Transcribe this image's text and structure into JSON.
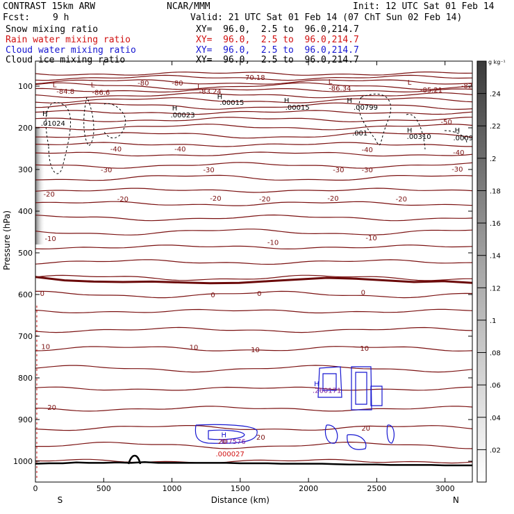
{
  "header": {
    "model": "CONTRAST 15km ARW",
    "org": "NCAR/MMM",
    "init": "Init: 12 UTC Sat 01 Feb 14",
    "fcst_label": "Fcst:",
    "fcst_value": "9 h",
    "valid": "Valid: 21 UTC Sat 01 Feb 14 (07 ChT Sun 02 Feb 14)",
    "fields": [
      {
        "name": "Snow mixing ratio",
        "xy": "XY=  96.0,  2.5 to  96.0,214.7",
        "color": "#000000"
      },
      {
        "name": "Rain water mixing ratio",
        "xy": "XY=  96.0,  2.5 to  96.0,214.7",
        "color": "#d01010"
      },
      {
        "name": "Cloud water mixing ratio",
        "xy": "XY=  96.0,  2.5 to  96.0,214.7",
        "color": "#1515d0"
      },
      {
        "name": "Cloud ice mixing ratio",
        "xy": "XY=  96.0,  2.5 to  96.0,214.7",
        "color": "#000000"
      }
    ]
  },
  "chart_data": {
    "type": "cross-section contour",
    "xlabel": "Distance (km)",
    "ylabel": "Pressure (hPa)",
    "xlim": [
      0,
      3200
    ],
    "ylim": [
      1050,
      40
    ],
    "x_ticks": [
      0,
      500,
      1000,
      1500,
      2000,
      2500,
      3000
    ],
    "y_ticks": [
      100,
      200,
      300,
      400,
      500,
      600,
      700,
      800,
      900,
      1000
    ],
    "left_end": "S",
    "right_end": "N",
    "colorbar": {
      "unit": "g kg⁻¹",
      "ticks": [
        ".02",
        ".04",
        ".06",
        ".08",
        ".1",
        ".12",
        ".14",
        ".16",
        ".18",
        ".2",
        ".22",
        ".24"
      ],
      "range": [
        0,
        0.26
      ]
    },
    "temperature_contours": {
      "color": "#7a1010",
      "zero_isotherm_p": [
        558,
        566,
        569,
        570,
        569,
        571,
        573,
        572,
        568,
        564,
        560,
        562,
        566,
        570,
        568,
        572
      ],
      "labels": [
        {
          "text": "-80",
          "x": 790,
          "p": 92
        },
        {
          "text": "-80",
          "x": 1040,
          "p": 92
        },
        {
          "text": "-70.18",
          "x": 1600,
          "p": 78
        },
        {
          "text": "-84.8",
          "x": 220,
          "p": 112
        },
        {
          "text": "-86.6",
          "x": 480,
          "p": 114
        },
        {
          "text": "-83.24",
          "x": 1280,
          "p": 112
        },
        {
          "text": "-86.34",
          "x": 2230,
          "p": 104
        },
        {
          "text": "-85.21",
          "x": 2900,
          "p": 108
        },
        {
          "text": "-82",
          "x": 3160,
          "p": 98
        },
        {
          "text": "-50",
          "x": 3010,
          "p": 185
        },
        {
          "text": "-40",
          "x": 590,
          "p": 250
        },
        {
          "text": "-40",
          "x": 1060,
          "p": 250
        },
        {
          "text": "-40",
          "x": 2430,
          "p": 252
        },
        {
          "text": "-40",
          "x": 3100,
          "p": 258
        },
        {
          "text": "-30",
          "x": 520,
          "p": 300
        },
        {
          "text": "-30",
          "x": 1270,
          "p": 300
        },
        {
          "text": "-30",
          "x": 2220,
          "p": 300
        },
        {
          "text": "-30",
          "x": 2430,
          "p": 300
        },
        {
          "text": "-30",
          "x": 3090,
          "p": 298
        },
        {
          "text": "-20",
          "x": 100,
          "p": 358
        },
        {
          "text": "-20",
          "x": 640,
          "p": 370
        },
        {
          "text": "-20",
          "x": 1320,
          "p": 368
        },
        {
          "text": "-20",
          "x": 1680,
          "p": 370
        },
        {
          "text": "-20",
          "x": 2180,
          "p": 368
        },
        {
          "text": "-20",
          "x": 2680,
          "p": 370
        },
        {
          "text": "-10",
          "x": 110,
          "p": 465
        },
        {
          "text": "-10",
          "x": 1740,
          "p": 474
        },
        {
          "text": "-10",
          "x": 2460,
          "p": 463
        },
        {
          "text": "0",
          "x": 50,
          "p": 597
        },
        {
          "text": "0",
          "x": 1300,
          "p": 600
        },
        {
          "text": "0",
          "x": 1640,
          "p": 597
        },
        {
          "text": "0",
          "x": 2400,
          "p": 594
        },
        {
          "text": "10",
          "x": 75,
          "p": 724
        },
        {
          "text": "10",
          "x": 1160,
          "p": 726
        },
        {
          "text": "10",
          "x": 1610,
          "p": 732
        },
        {
          "text": "10",
          "x": 2410,
          "p": 728
        },
        {
          "text": "20",
          "x": 120,
          "p": 870
        },
        {
          "text": "20",
          "x": 1370,
          "p": 952
        },
        {
          "text": "20",
          "x": 1650,
          "p": 942
        },
        {
          "text": "20",
          "x": 2420,
          "p": 920
        }
      ]
    },
    "extrema": [
      {
        "type": "L",
        "x": 140,
        "p": 96
      },
      {
        "type": "L",
        "x": 420,
        "p": 96
      },
      {
        "type": "L",
        "x": 1200,
        "p": 100
      },
      {
        "type": "L",
        "x": 2160,
        "p": 88
      },
      {
        "type": "L",
        "x": 2740,
        "p": 90
      },
      {
        "type": "H",
        "x": 70,
        "p": 165
      },
      {
        "type": "H",
        "x": 1020,
        "p": 152
      },
      {
        "type": "H",
        "x": 1350,
        "p": 124
      },
      {
        "type": "H",
        "x": 1840,
        "p": 133
      },
      {
        "type": "H",
        "x": 2300,
        "p": 133
      },
      {
        "type": "H",
        "x": 2740,
        "p": 205
      },
      {
        "type": "H",
        "x": 3090,
        "p": 205
      },
      {
        "type": "H",
        "x": 2060,
        "p": 813
      },
      {
        "type": "H",
        "x": 1380,
        "p": 936
      }
    ],
    "value_labels": [
      {
        "text": ".01024",
        "x": 40,
        "p": 188,
        "color": "#000000"
      },
      {
        "text": ".00023",
        "x": 990,
        "p": 168,
        "color": "#000000"
      },
      {
        "text": ".00015",
        "x": 1350,
        "p": 138,
        "color": "#000000"
      },
      {
        "text": ".00015",
        "x": 1830,
        "p": 150,
        "color": "#000000"
      },
      {
        "text": ".00799",
        "x": 2330,
        "p": 150,
        "color": "#000000"
      },
      {
        "text": ".001",
        "x": 2320,
        "p": 212,
        "color": "#000000"
      },
      {
        "text": ".00310",
        "x": 2720,
        "p": 220,
        "color": "#000000"
      },
      {
        "text": ".0009",
        "x": 3060,
        "p": 223,
        "color": "#000000"
      },
      {
        "text": ".260171",
        "x": 2030,
        "p": 829,
        "color": "#8020a0"
      },
      {
        "text": ".307576",
        "x": 1330,
        "p": 952,
        "color": "#8020a0"
      },
      {
        "text": ".000027",
        "x": 1320,
        "p": 982,
        "color": "#d01010"
      }
    ],
    "terrain_p": [
      1006,
      1005,
      1005,
      1003,
      1004,
      1004,
      1003,
      1004,
      1002,
      1004,
      1004,
      1004,
      1004,
      1004,
      1004,
      1005,
      1005,
      1005,
      1006,
      1006,
      1006,
      1006,
      1007,
      1008,
      1008,
      1008,
      1009,
      1009,
      1009,
      1009,
      1010,
      1010,
      1010
    ]
  }
}
